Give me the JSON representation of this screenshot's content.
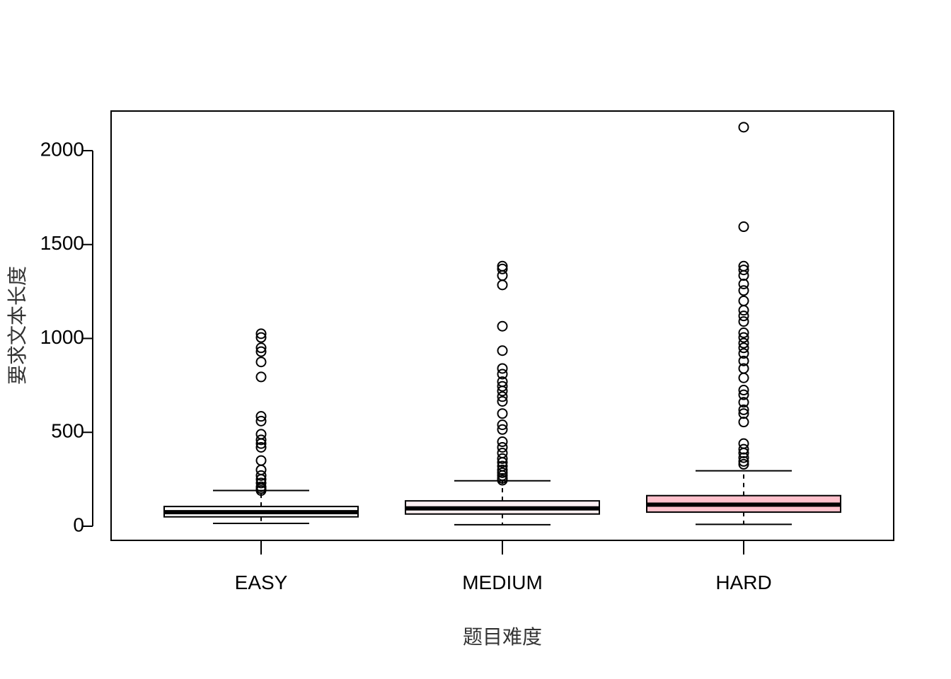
{
  "chart_data": {
    "type": "boxplot",
    "title": "",
    "xlabel": "题目难度",
    "ylabel": "要求文本长度",
    "ylim": [
      -80,
      2200
    ],
    "yticks": [
      0,
      500,
      1000,
      1500,
      2000
    ],
    "grid": false,
    "legend": "none",
    "categories": [
      "EASY",
      "MEDIUM",
      "HARD"
    ],
    "boxes": [
      {
        "category": "EASY",
        "color": "#ffffff",
        "whisker_low": 15,
        "q1": 50,
        "median": 75,
        "q3": 105,
        "whisker_high": 190,
        "outliers": [
          190,
          200,
          210,
          230,
          250,
          270,
          300,
          350,
          420,
          440,
          460,
          490,
          560,
          585,
          795,
          875,
          930,
          950,
          1005,
          1025
        ]
      },
      {
        "category": "MEDIUM",
        "color": "#fdf0f2",
        "whisker_low": 8,
        "q1": 65,
        "median": 95,
        "q3": 135,
        "whisker_high": 242,
        "outliers": [
          245,
          255,
          270,
          285,
          300,
          320,
          340,
          360,
          390,
          420,
          450,
          515,
          540,
          600,
          665,
          690,
          720,
          745,
          770,
          810,
          840,
          935,
          1065,
          1285,
          1335,
          1370,
          1385
        ]
      },
      {
        "category": "HARD",
        "color": "#ffc0cb",
        "whisker_low": 10,
        "q1": 75,
        "median": 115,
        "q3": 163,
        "whisker_high": 295,
        "outliers": [
          330,
          345,
          365,
          390,
          410,
          440,
          555,
          600,
          620,
          660,
          700,
          725,
          790,
          840,
          880,
          920,
          950,
          975,
          1005,
          1030,
          1090,
          1120,
          1150,
          1200,
          1255,
          1290,
          1335,
          1365,
          1385,
          1595,
          2125
        ]
      }
    ]
  }
}
